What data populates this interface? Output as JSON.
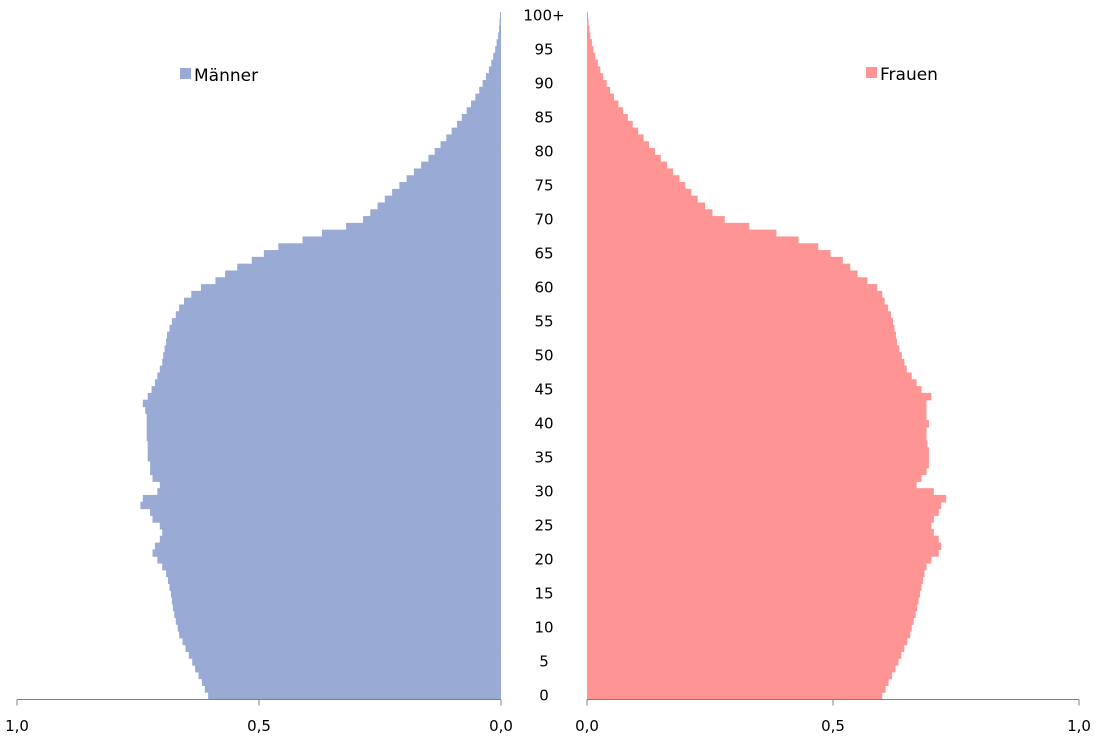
{
  "chart_data": {
    "type": "bar",
    "orientation": "horizontal-pyramid",
    "categories": [
      "0",
      "1",
      "2",
      "3",
      "4",
      "5",
      "6",
      "7",
      "8",
      "9",
      "10",
      "11",
      "12",
      "13",
      "14",
      "15",
      "16",
      "17",
      "18",
      "19",
      "20",
      "21",
      "22",
      "23",
      "24",
      "25",
      "26",
      "27",
      "28",
      "29",
      "30",
      "31",
      "32",
      "33",
      "34",
      "35",
      "36",
      "37",
      "38",
      "39",
      "40",
      "41",
      "42",
      "43",
      "44",
      "45",
      "46",
      "47",
      "48",
      "49",
      "50",
      "51",
      "52",
      "53",
      "54",
      "55",
      "56",
      "57",
      "58",
      "59",
      "60",
      "61",
      "62",
      "63",
      "64",
      "65",
      "66",
      "67",
      "68",
      "69",
      "70",
      "71",
      "72",
      "73",
      "74",
      "75",
      "76",
      "77",
      "78",
      "79",
      "80",
      "81",
      "82",
      "83",
      "84",
      "85",
      "86",
      "87",
      "88",
      "89",
      "90",
      "91",
      "92",
      "93",
      "94",
      "95",
      "96",
      "97",
      "98",
      "99",
      "100+"
    ],
    "age_labels": [
      "0",
      "5",
      "10",
      "15",
      "20",
      "25",
      "30",
      "35",
      "40",
      "45",
      "50",
      "55",
      "60",
      "65",
      "70",
      "75",
      "80",
      "85",
      "90",
      "95",
      "100+"
    ],
    "x_tick_labels": [
      "1,0",
      "0,5",
      "0,0"
    ],
    "x_range": [
      0,
      1.0
    ],
    "grid": false,
    "legend": [
      {
        "name": "Männer",
        "position": "top-left",
        "color": "#99ABD4"
      },
      {
        "name": "Frauen",
        "position": "top-right",
        "color": "#FF9494"
      }
    ],
    "series": [
      {
        "name": "Männer",
        "side": "left",
        "color": "#99ABD4",
        "values": [
          0.605,
          0.612,
          0.618,
          0.625,
          0.632,
          0.638,
          0.645,
          0.652,
          0.658,
          0.665,
          0.668,
          0.672,
          0.675,
          0.678,
          0.68,
          0.682,
          0.685,
          0.688,
          0.692,
          0.7,
          0.71,
          0.72,
          0.715,
          0.705,
          0.7,
          0.705,
          0.72,
          0.725,
          0.745,
          0.74,
          0.71,
          0.705,
          0.72,
          0.725,
          0.725,
          0.73,
          0.73,
          0.73,
          0.732,
          0.732,
          0.732,
          0.732,
          0.735,
          0.74,
          0.73,
          0.722,
          0.715,
          0.71,
          0.705,
          0.7,
          0.698,
          0.695,
          0.692,
          0.69,
          0.685,
          0.68,
          0.672,
          0.665,
          0.655,
          0.64,
          0.62,
          0.59,
          0.57,
          0.545,
          0.515,
          0.49,
          0.46,
          0.41,
          0.37,
          0.32,
          0.285,
          0.27,
          0.255,
          0.24,
          0.225,
          0.21,
          0.195,
          0.18,
          0.165,
          0.15,
          0.137,
          0.125,
          0.113,
          0.102,
          0.091,
          0.081,
          0.071,
          0.062,
          0.053,
          0.045,
          0.038,
          0.031,
          0.025,
          0.02,
          0.016,
          0.012,
          0.009,
          0.006,
          0.004,
          0.003,
          0.002
        ]
      },
      {
        "name": "Frauen",
        "side": "right",
        "color": "#FF9494",
        "values": [
          0.6,
          0.607,
          0.613,
          0.62,
          0.627,
          0.633,
          0.639,
          0.645,
          0.651,
          0.657,
          0.66,
          0.664,
          0.668,
          0.671,
          0.674,
          0.677,
          0.68,
          0.683,
          0.686,
          0.69,
          0.7,
          0.715,
          0.72,
          0.715,
          0.705,
          0.7,
          0.705,
          0.715,
          0.72,
          0.73,
          0.705,
          0.67,
          0.68,
          0.69,
          0.695,
          0.695,
          0.695,
          0.692,
          0.69,
          0.69,
          0.695,
          0.69,
          0.69,
          0.69,
          0.7,
          0.68,
          0.67,
          0.66,
          0.65,
          0.645,
          0.64,
          0.635,
          0.63,
          0.628,
          0.625,
          0.622,
          0.618,
          0.612,
          0.605,
          0.6,
          0.59,
          0.57,
          0.55,
          0.535,
          0.52,
          0.495,
          0.47,
          0.43,
          0.385,
          0.33,
          0.28,
          0.255,
          0.24,
          0.225,
          0.212,
          0.2,
          0.188,
          0.175,
          0.163,
          0.15,
          0.138,
          0.126,
          0.115,
          0.104,
          0.093,
          0.083,
          0.073,
          0.064,
          0.055,
          0.047,
          0.04,
          0.033,
          0.027,
          0.022,
          0.017,
          0.013,
          0.01,
          0.007,
          0.005,
          0.003,
          0.002
        ]
      }
    ]
  }
}
